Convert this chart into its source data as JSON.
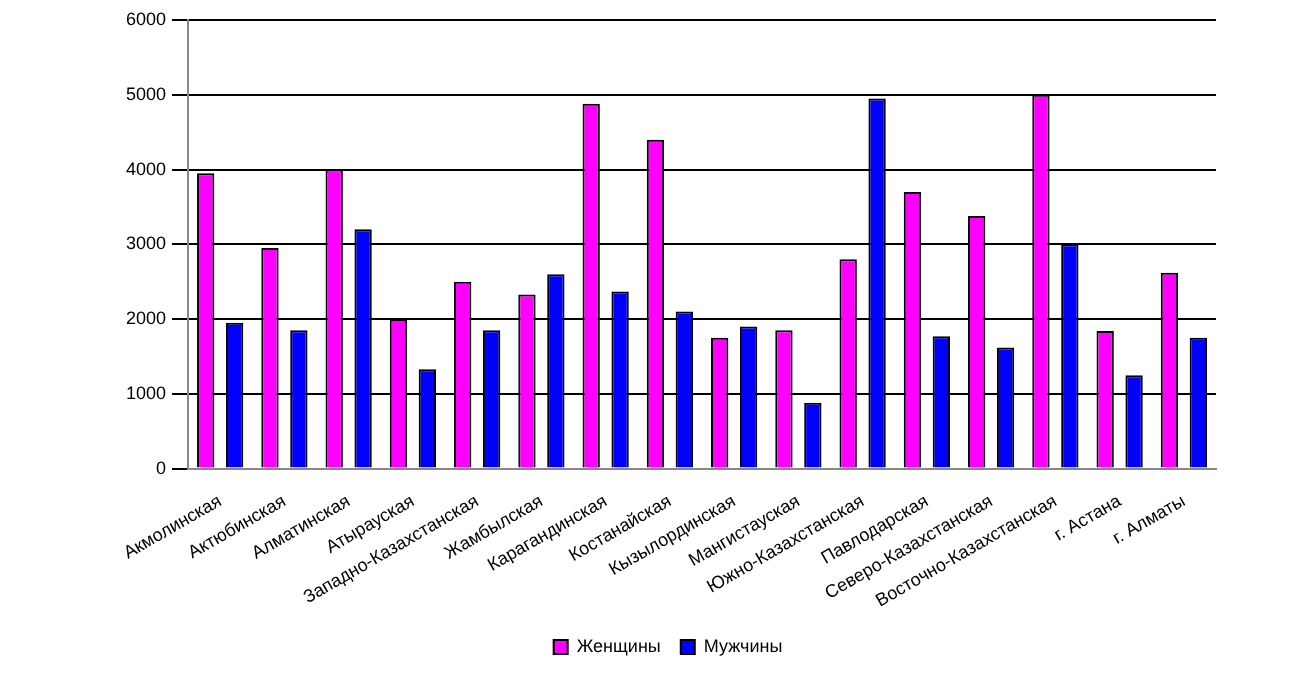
{
  "chart_data": {
    "type": "bar",
    "categories": [
      "Акмолинская",
      "Актюбинская",
      "Алматинская",
      "Атырауская",
      "Западно-Казахстанская",
      "Жамбылская",
      "Карагандинская",
      "Костанайская",
      "Кызылординская",
      "Мангистауская",
      "Южно-Казахстанская",
      "Павлодарская",
      "Северо-Казахстанская",
      "Восточно-Казахстанская",
      "г. Астана",
      "г. Алматы"
    ],
    "series": [
      {
        "name": "Женщины",
        "color": "#ff00ff",
        "values": [
          3950,
          2950,
          4000,
          2000,
          2500,
          2330,
          4880,
          4400,
          1750,
          1850,
          2800,
          3700,
          3380,
          5000,
          1840,
          2620
        ]
      },
      {
        "name": "Мужчины",
        "color": "#0000ff",
        "values": [
          1950,
          1850,
          3200,
          1330,
          1850,
          2600,
          2370,
          2100,
          1900,
          880,
          4950,
          1770,
          1620,
          3000,
          1250,
          1750
        ]
      }
    ],
    "ylim": [
      0,
      6000
    ],
    "yticks": [
      0,
      1000,
      2000,
      3000,
      4000,
      5000,
      6000
    ],
    "grid": "y",
    "legend": "bottom"
  }
}
